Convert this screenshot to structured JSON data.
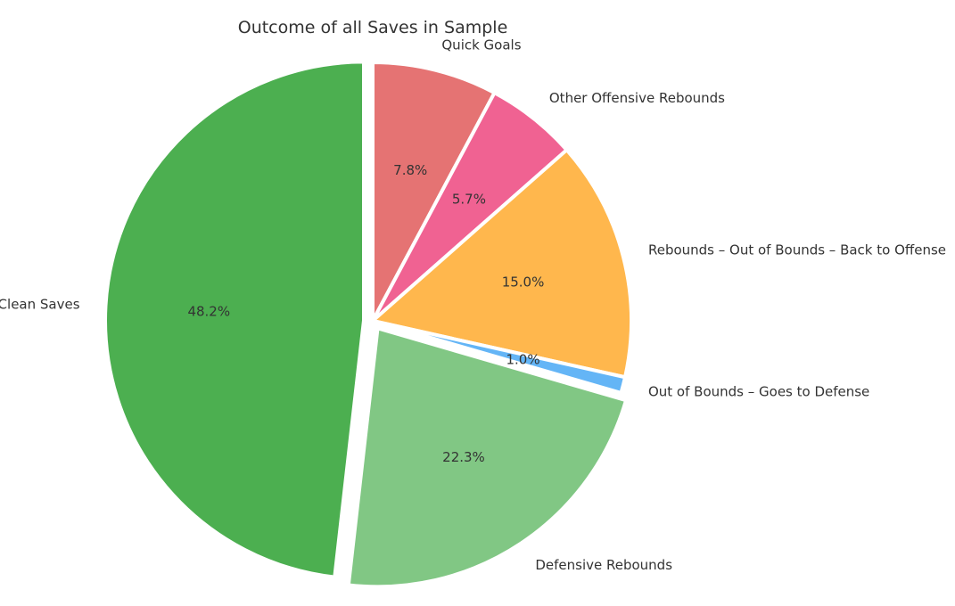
{
  "chart_data": {
    "type": "pie",
    "title": "Outcome of all Saves in Sample",
    "start_angle_deg": 90,
    "direction": "clockwise",
    "slices": [
      {
        "label": "Quick Goals",
        "value": 7.8,
        "pct_label": "7.8%",
        "color": "#e57373",
        "exploded": false
      },
      {
        "label": "Other Offensive Rebounds",
        "value": 5.7,
        "pct_label": "5.7%",
        "color": "#f06292",
        "exploded": false
      },
      {
        "label": "Rebounds – Out of Bounds – Back to Offense",
        "value": 15.0,
        "pct_label": "15.0%",
        "color": "#ffb74d",
        "exploded": false
      },
      {
        "label": "Out of Bounds – Goes to Defense",
        "value": 1.0,
        "pct_label": "1.0%",
        "color": "#64b5f6",
        "exploded": false
      },
      {
        "label": "Defensive Rebounds",
        "value": 22.3,
        "pct_label": "22.3%",
        "color": "#81c784",
        "exploded": true
      },
      {
        "label": "Clean Saves",
        "value": 48.2,
        "pct_label": "48.2%",
        "color": "#4caf50",
        "exploded": true
      }
    ]
  }
}
